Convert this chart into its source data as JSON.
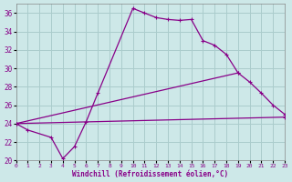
{
  "xlabel": "Windchill (Refroidissement éolien,°C)",
  "xlim": [
    0,
    23
  ],
  "ylim": [
    20,
    37
  ],
  "yticks": [
    20,
    22,
    24,
    26,
    28,
    30,
    32,
    34,
    36
  ],
  "xticks": [
    0,
    1,
    2,
    3,
    4,
    5,
    6,
    7,
    8,
    9,
    10,
    11,
    12,
    13,
    14,
    15,
    16,
    17,
    18,
    19,
    20,
    21,
    22,
    23
  ],
  "bg_color": "#cde8e8",
  "grid_color": "#aacccc",
  "line_color": "#880088",
  "line1_x": [
    0,
    1,
    3,
    4,
    5,
    6,
    7,
    10,
    11,
    12,
    13,
    14,
    15,
    16,
    17,
    18,
    19
  ],
  "line1_y": [
    24.0,
    23.3,
    22.5,
    20.2,
    21.5,
    24.2,
    27.3,
    36.5,
    36.0,
    35.5,
    35.3,
    35.2,
    35.3,
    33.0,
    32.5,
    31.5,
    29.5
  ],
  "line2_x": [
    0,
    19,
    20,
    21,
    22,
    23
  ],
  "line2_y": [
    24.0,
    29.5,
    28.5,
    27.3,
    26.0,
    25.0
  ],
  "line3_x": [
    0,
    23
  ],
  "line3_y": [
    24.0,
    24.7
  ]
}
